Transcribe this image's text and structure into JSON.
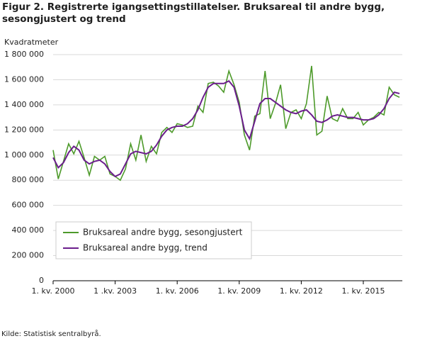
{
  "chart_data": {
    "type": "line",
    "title": "Figur 2. Registrerte igangsettingstillatelser. Bruksareal til andre bygg, sesongjustert og trend",
    "y_label": "Kvadratmeter",
    "source": "Kilde:  Statistisk sentralbyrå.",
    "categories": [
      "1. kv. 2000",
      null,
      null,
      null,
      null,
      null,
      null,
      null,
      null,
      null,
      null,
      null,
      "1 .kv. 2003",
      null,
      null,
      null,
      null,
      null,
      null,
      null,
      null,
      null,
      null,
      null,
      "1. kv. 2006",
      null,
      null,
      null,
      null,
      null,
      null,
      null,
      null,
      null,
      null,
      null,
      "1. kv. 2009",
      null,
      null,
      null,
      null,
      null,
      null,
      null,
      null,
      null,
      null,
      null,
      "1. kv. 2012",
      null,
      null,
      null,
      null,
      null,
      null,
      null,
      null,
      null,
      null,
      null,
      "1. kv. 2015",
      null,
      null,
      null,
      null,
      null,
      null,
      null
    ],
    "series": [
      {
        "name": "Bruksareal andre bygg, sesongjustert",
        "color": "#4d9a2a",
        "values": [
          1040000,
          810000,
          950000,
          1090000,
          1010000,
          1110000,
          980000,
          840000,
          990000,
          960000,
          990000,
          850000,
          830000,
          800000,
          890000,
          1090000,
          960000,
          1160000,
          950000,
          1070000,
          1010000,
          1180000,
          1220000,
          1180000,
          1250000,
          1240000,
          1220000,
          1230000,
          1390000,
          1340000,
          1570000,
          1580000,
          1550000,
          1500000,
          1670000,
          1560000,
          1420000,
          1160000,
          1040000,
          1310000,
          1330000,
          1670000,
          1290000,
          1410000,
          1560000,
          1210000,
          1340000,
          1360000,
          1290000,
          1410000,
          1710000,
          1160000,
          1190000,
          1470000,
          1290000,
          1270000,
          1370000,
          1290000,
          1290000,
          1340000,
          1240000,
          1280000,
          1300000,
          1340000,
          1320000,
          1540000,
          1480000,
          1460000
        ]
      },
      {
        "name": "Bruksareal andre bygg, trend",
        "color": "#6b1e8c",
        "values": [
          980000,
          900000,
          940000,
          1020000,
          1070000,
          1040000,
          960000,
          930000,
          950000,
          960000,
          930000,
          870000,
          830000,
          850000,
          930000,
          1010000,
          1030000,
          1020000,
          1010000,
          1030000,
          1080000,
          1150000,
          1200000,
          1220000,
          1230000,
          1230000,
          1250000,
          1290000,
          1360000,
          1460000,
          1540000,
          1570000,
          1570000,
          1570000,
          1590000,
          1540000,
          1390000,
          1200000,
          1130000,
          1270000,
          1410000,
          1450000,
          1450000,
          1420000,
          1390000,
          1360000,
          1340000,
          1330000,
          1350000,
          1360000,
          1320000,
          1270000,
          1260000,
          1280000,
          1310000,
          1320000,
          1310000,
          1300000,
          1300000,
          1290000,
          1280000,
          1280000,
          1290000,
          1320000,
          1370000,
          1450000,
          1500000,
          1490000
        ]
      }
    ],
    "ylim": [
      0,
      1800000
    ],
    "yticks": [
      0,
      {
        "value": 200000,
        "label": "200 000"
      },
      {
        "value": 400000,
        "label": "400 000"
      },
      {
        "value": 600000,
        "label": "600 000"
      },
      {
        "value": 800000,
        "label": "800 000"
      },
      {
        "value": 1000000,
        "label": "1 000 000"
      },
      {
        "value": 1200000,
        "label": "1 200 000"
      },
      {
        "value": 1400000,
        "label": "1 400 000"
      },
      {
        "value": 1600000,
        "label": "1 600 000"
      },
      {
        "value": 1800000,
        "label": "1 800 000"
      }
    ],
    "grid": true,
    "legend": "lower left"
  }
}
